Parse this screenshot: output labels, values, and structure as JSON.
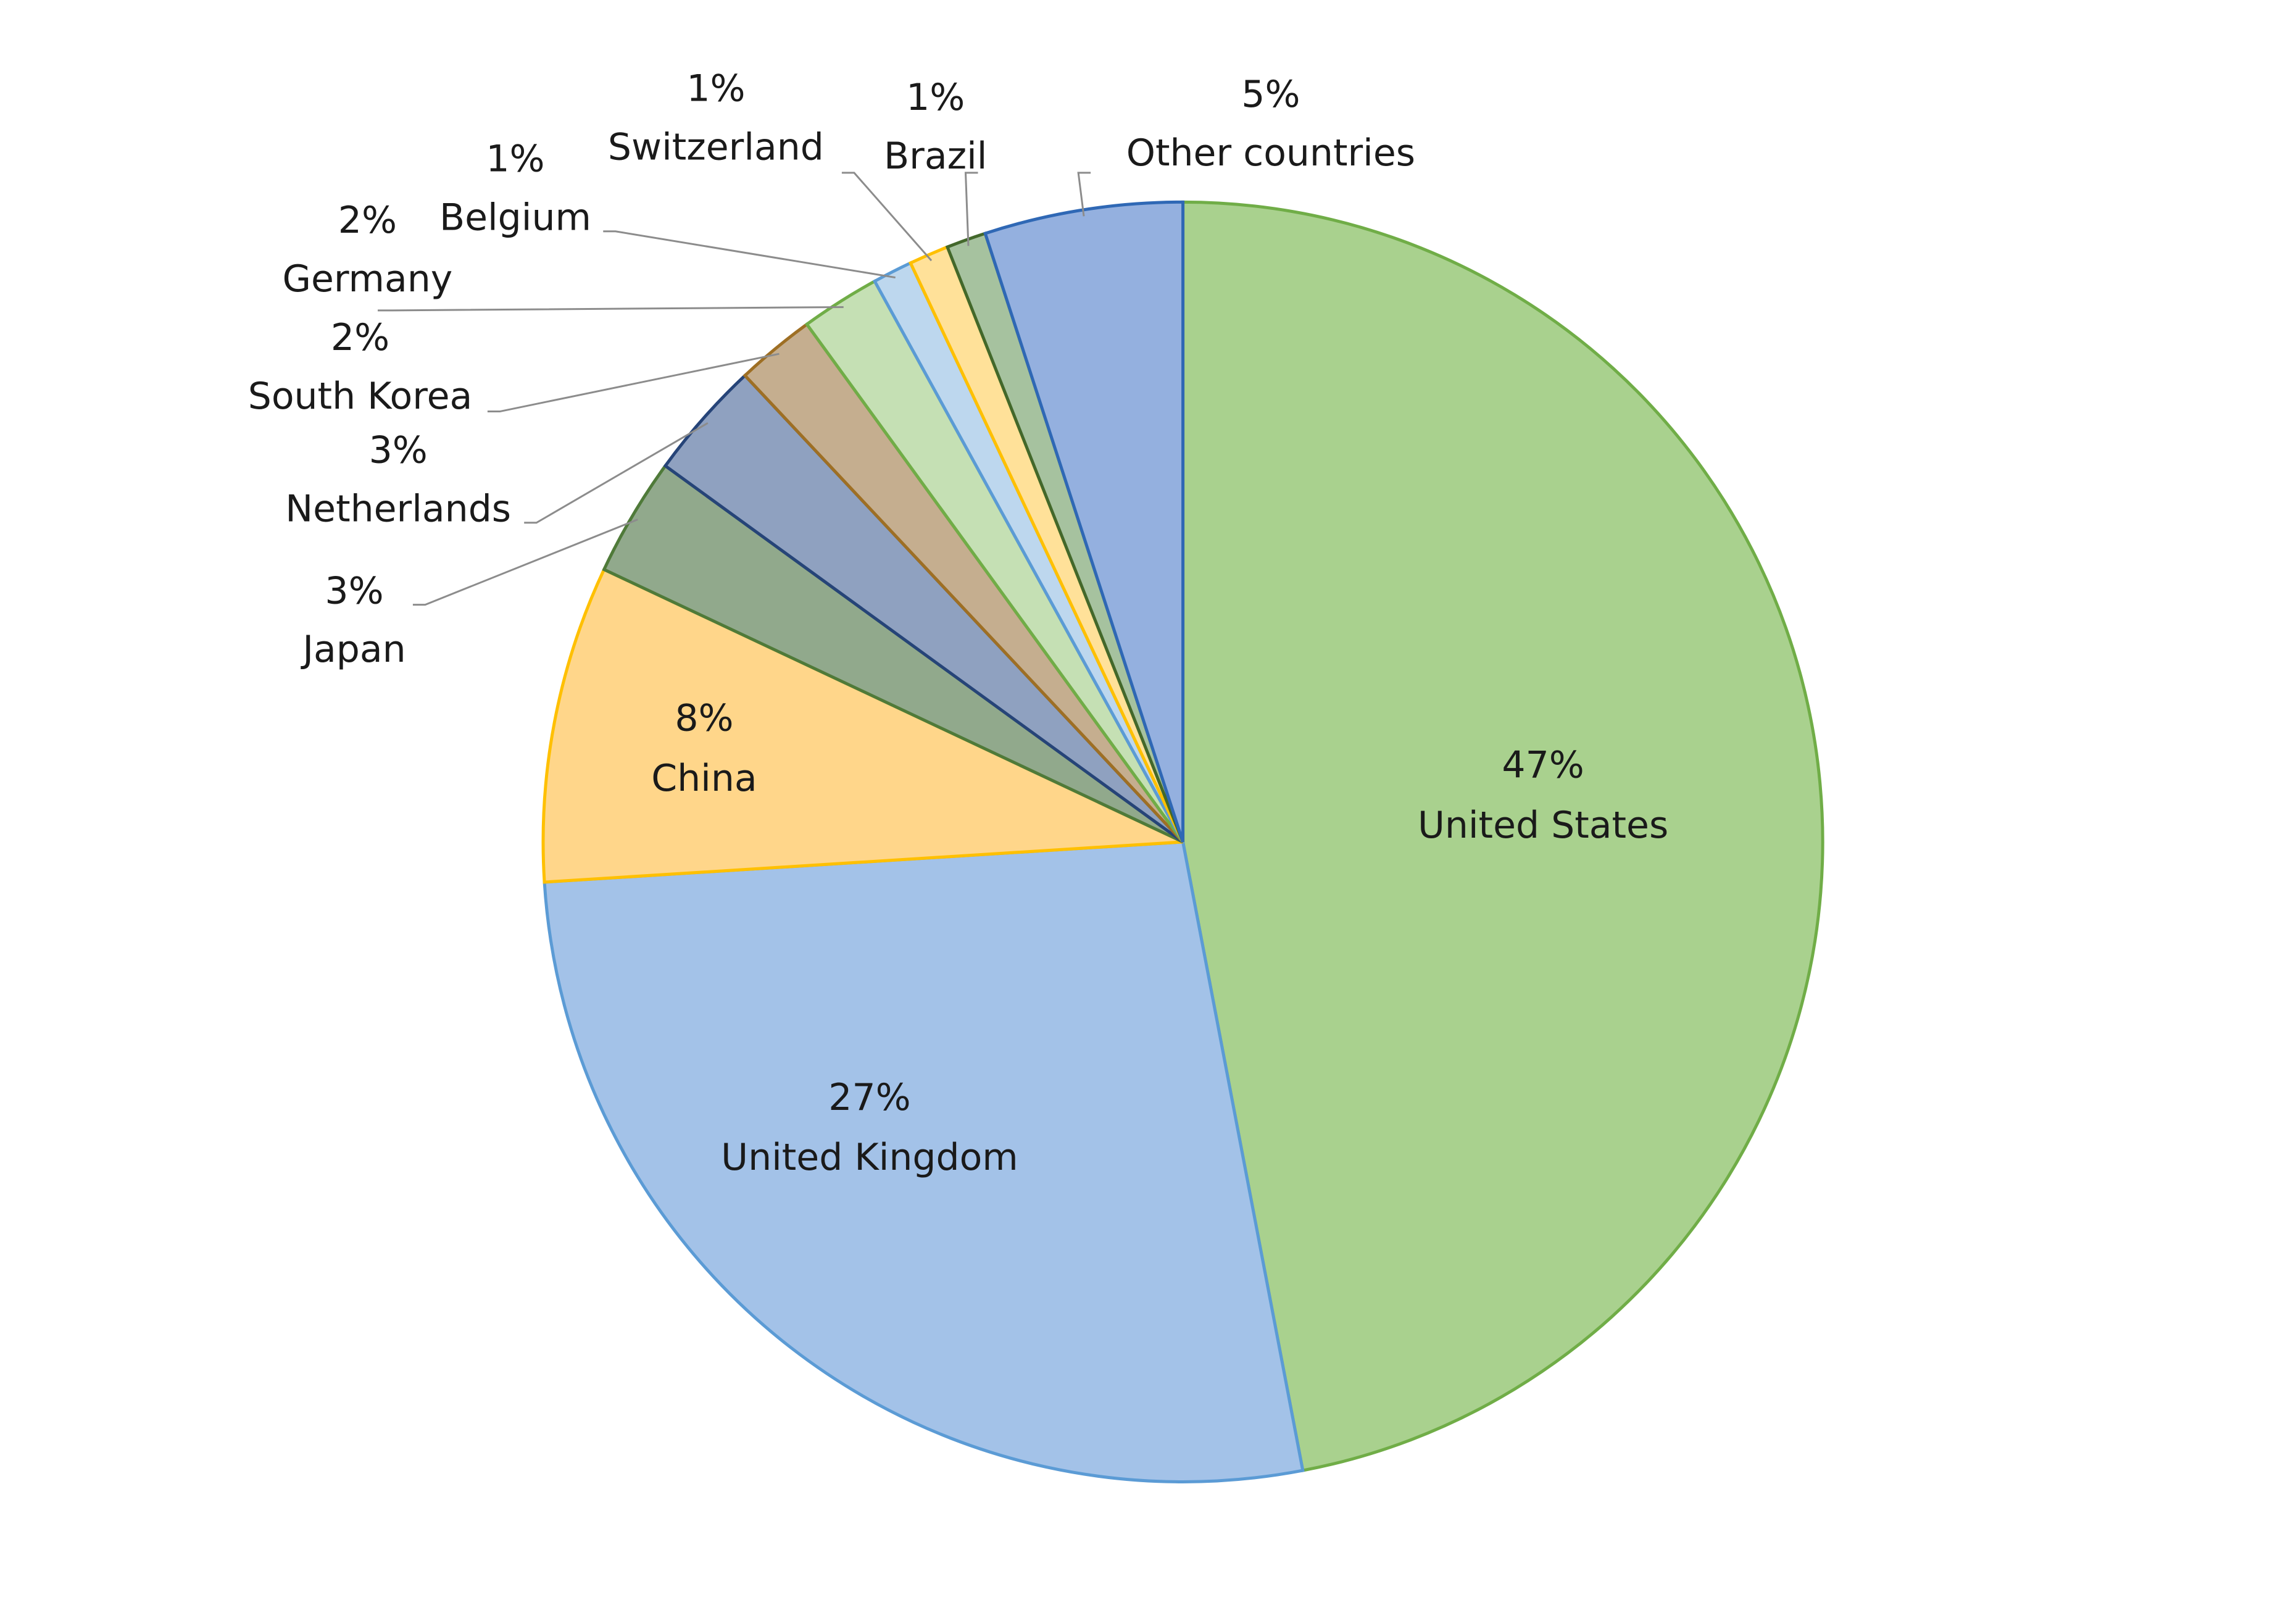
{
  "chart_data": {
    "type": "pie",
    "categories": [
      "United States",
      "United Kingdom",
      "China",
      "Japan",
      "Netherlands",
      "South Korea",
      "Germany",
      "Belgium",
      "Switzerland",
      "Brazil",
      "Other countries"
    ],
    "values": [
      47,
      27,
      8,
      3,
      3,
      2,
      2,
      1,
      1,
      1,
      5
    ],
    "value_labels": [
      "47%",
      "27%",
      "8%",
      "3%",
      "3%",
      "2%",
      "2%",
      "1%",
      "1%",
      "1%",
      "5%"
    ],
    "colors": [
      "#a9d18e",
      "#a3c2e8",
      "#ffd68a",
      "#91a98c",
      "#8fa1c0",
      "#c5ae8f",
      "#c5e0b4",
      "#bdd7ee",
      "#ffe199",
      "#a6c29f",
      "#94b0df"
    ],
    "stroke_colors": [
      "#70ad47",
      "#5b9bd5",
      "#ffc000",
      "#4f7a39",
      "#264478",
      "#9e6f24",
      "#70ad47",
      "#5b9bd5",
      "#ffc000",
      "#43682b",
      "#2f68b5"
    ]
  }
}
